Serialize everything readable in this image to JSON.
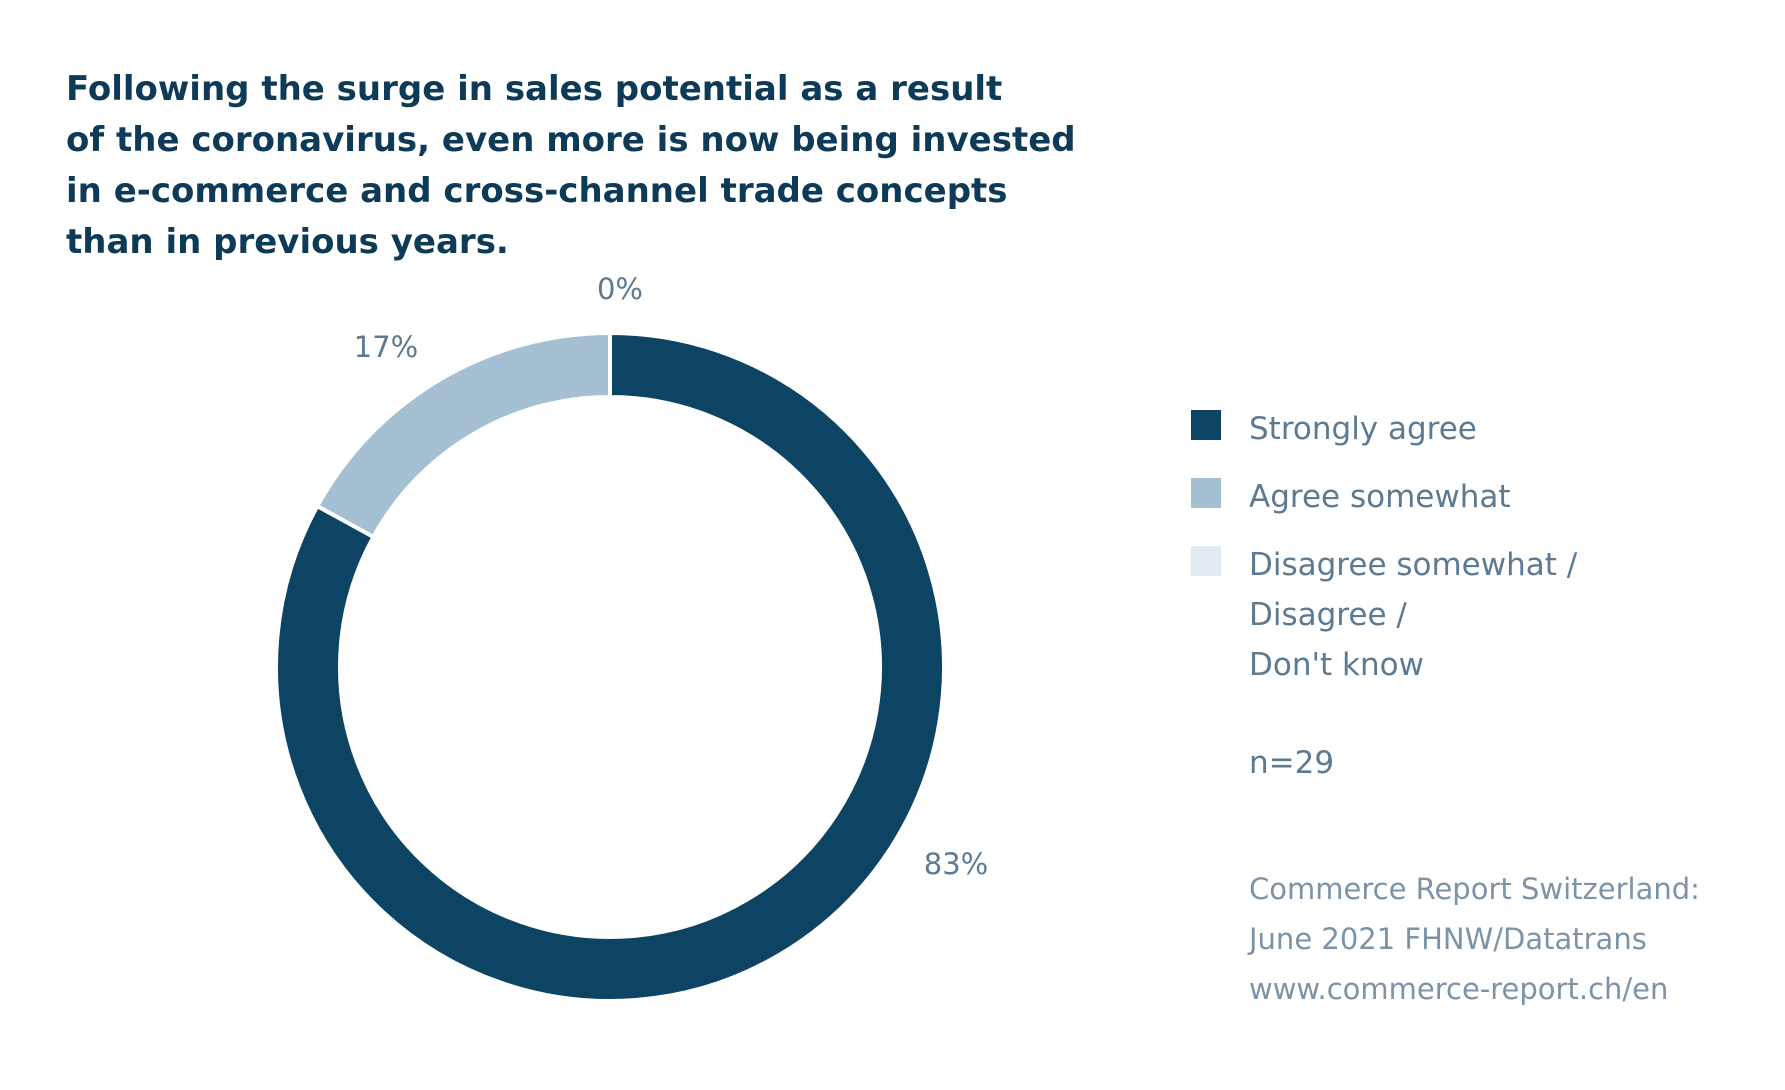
{
  "title_lines": [
    "Following the surge in sales potential as a result",
    "of the coronavirus, even more is now being invested",
    "in e-commerce and cross-channel trade concepts",
    "than in previous years."
  ],
  "chart_data": {
    "type": "pie",
    "donut": true,
    "title": "Following the surge in sales potential as a result of the coronavirus, even more is now being invested in e-commerce and cross-channel trade concepts than in previous years.",
    "categories": [
      "Strongly agree",
      "Agree somewhat",
      "Disagree somewhat / Disagree / Don't know"
    ],
    "values": [
      83,
      17,
      0
    ],
    "labels": [
      "83%",
      "17%",
      "0%"
    ],
    "colors": [
      "#0d4464",
      "#a6c0d3",
      "#e2e9ef"
    ],
    "legend_position": "right"
  },
  "legend": [
    {
      "lines": [
        "Strongly agree"
      ],
      "color": "#0d4464"
    },
    {
      "lines": [
        "Agree somewhat"
      ],
      "color": "#a6c0d3"
    },
    {
      "lines": [
        "Disagree somewhat /",
        "Disagree /",
        "Don't know"
      ],
      "color": "#e2e9ef"
    }
  ],
  "n_label": "n=29",
  "source_lines": [
    "Commerce Report Switzerland:",
    "June 2021 FHNW/Datatrans",
    "www.commerce-report.ch/en"
  ]
}
